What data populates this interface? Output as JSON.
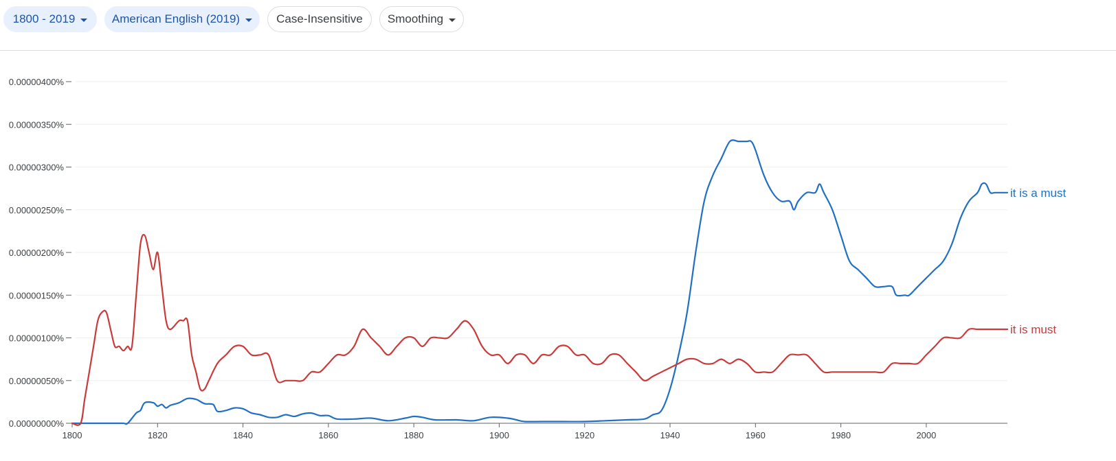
{
  "toolbar": {
    "year_range": "1800 - 2019",
    "corpus": "American English (2019)",
    "case": "Case-Insensitive",
    "smoothing": "Smoothing"
  },
  "colors": {
    "chip_bg": "#e8f0fe",
    "chip_text": "#1a55a8",
    "series_blue": "#1f6fc5",
    "series_red": "#c93a3a",
    "grid": "#eeeeee"
  },
  "chart_data": {
    "type": "line",
    "title": "",
    "xlabel": "",
    "ylabel": "",
    "xlim": [
      1800,
      2019
    ],
    "ylim": [
      0,
      4e-06
    ],
    "grid": true,
    "legend": "inline-right",
    "x_ticks": [
      "1800",
      "1820",
      "1840",
      "1860",
      "1880",
      "1900",
      "1920",
      "1940",
      "1960",
      "1980",
      "2000"
    ],
    "y_ticks": [
      "0.00000000%",
      "0.00000050%",
      "0.00000100%",
      "0.00000150%",
      "0.00000200%",
      "0.00000250%",
      "0.00000300%",
      "0.00000350%",
      "0.00000400%"
    ],
    "series": [
      {
        "name": "it is a must",
        "color": "#1f6fc5",
        "x": [
          1800,
          1805,
          1810,
          1812,
          1813,
          1815,
          1816,
          1817,
          1819,
          1820,
          1821,
          1822,
          1823,
          1825,
          1827,
          1829,
          1831,
          1833,
          1834,
          1836,
          1838,
          1840,
          1842,
          1844,
          1846,
          1848,
          1850,
          1852,
          1854,
          1856,
          1858,
          1860,
          1862,
          1866,
          1870,
          1874,
          1878,
          1880,
          1882,
          1885,
          1890,
          1894,
          1898,
          1902,
          1904,
          1906,
          1910,
          1915,
          1920,
          1925,
          1930,
          1934,
          1936,
          1938,
          1940,
          1942,
          1944,
          1946,
          1948,
          1950,
          1952,
          1954,
          1956,
          1957,
          1958,
          1959,
          1960,
          1962,
          1964,
          1966,
          1968,
          1969,
          1970,
          1972,
          1974,
          1975,
          1976,
          1978,
          1980,
          1982,
          1984,
          1986,
          1988,
          1990,
          1992,
          1993,
          1995,
          1996,
          1998,
          2000,
          2002,
          2004,
          2006,
          2008,
          2010,
          2012,
          2013,
          2014,
          2015,
          2016,
          2017,
          2018,
          2019
        ],
        "values": [
          0,
          0,
          0,
          0,
          0,
          1.2e-07,
          1.5e-07,
          2.4e-07,
          2.4e-07,
          2e-07,
          2.2e-07,
          1.8e-07,
          2.1e-07,
          2.4e-07,
          2.9e-07,
          2.8e-07,
          2.3e-07,
          2.2e-07,
          1.4e-07,
          1.5e-07,
          1.8e-07,
          1.7e-07,
          1.2e-07,
          1e-07,
          7e-08,
          7e-08,
          1e-07,
          8e-08,
          1.1e-07,
          1.2e-07,
          9e-08,
          9e-08,
          5e-08,
          5e-08,
          6e-08,
          3e-08,
          6e-08,
          8e-08,
          7e-08,
          4e-08,
          4e-08,
          3e-08,
          7e-08,
          6e-08,
          4e-08,
          2e-08,
          2e-08,
          2e-08,
          2e-08,
          3e-08,
          4e-08,
          5e-08,
          1e-07,
          1.5e-07,
          4e-07,
          8e-07,
          1.3e-06,
          2e-06,
          2.6e-06,
          2.9e-06,
          3.1e-06,
          3.3e-06,
          3.3e-06,
          3.3e-06,
          3.3e-06,
          3.3e-06,
          3.2e-06,
          2.9e-06,
          2.7e-06,
          2.6e-06,
          2.6e-06,
          2.5e-06,
          2.6e-06,
          2.7e-06,
          2.7e-06,
          2.8e-06,
          2.7e-06,
          2.5e-06,
          2.2e-06,
          1.9e-06,
          1.8e-06,
          1.7e-06,
          1.6e-06,
          1.6e-06,
          1.6e-06,
          1.5e-06,
          1.5e-06,
          1.5e-06,
          1.6e-06,
          1.7e-06,
          1.8e-06,
          1.9e-06,
          2.1e-06,
          2.4e-06,
          2.6e-06,
          2.7e-06,
          2.8e-06,
          2.8e-06,
          2.7e-06,
          2.7e-06,
          2.7e-06,
          2.7e-06,
          2.7e-06
        ]
      },
      {
        "name": "it is must",
        "color": "#c93a3a",
        "x": [
          1800,
          1802,
          1803,
          1805,
          1806,
          1807,
          1808,
          1809,
          1810,
          1811,
          1812,
          1813,
          1814,
          1815,
          1816,
          1817,
          1818,
          1819,
          1820,
          1821,
          1822,
          1823,
          1825,
          1826,
          1827,
          1828,
          1829,
          1830,
          1831,
          1832,
          1834,
          1836,
          1838,
          1840,
          1842,
          1844,
          1846,
          1848,
          1850,
          1852,
          1854,
          1856,
          1858,
          1860,
          1862,
          1864,
          1866,
          1868,
          1870,
          1872,
          1874,
          1876,
          1878,
          1880,
          1882,
          1884,
          1886,
          1888,
          1890,
          1892,
          1894,
          1896,
          1898,
          1900,
          1902,
          1904,
          1906,
          1908,
          1910,
          1912,
          1914,
          1916,
          1918,
          1920,
          1922,
          1924,
          1926,
          1928,
          1930,
          1932,
          1934,
          1936,
          1938,
          1940,
          1942,
          1944,
          1946,
          1948,
          1950,
          1952,
          1954,
          1956,
          1958,
          1960,
          1962,
          1964,
          1966,
          1968,
          1970,
          1972,
          1974,
          1976,
          1978,
          1980,
          1982,
          1984,
          1986,
          1988,
          1990,
          1992,
          1994,
          1996,
          1998,
          2000,
          2002,
          2004,
          2006,
          2008,
          2010,
          2012,
          2014,
          2016,
          2018,
          2019
        ],
        "values": [
          0,
          0,
          3e-07,
          9e-07,
          1.2e-06,
          1.3e-06,
          1.3e-06,
          1.1e-06,
          9e-07,
          9e-07,
          8.5e-07,
          9e-07,
          9e-07,
          1.5e-06,
          2.1e-06,
          2.2e-06,
          2e-06,
          1.8e-06,
          2e-06,
          1.6e-06,
          1.2e-06,
          1.1e-06,
          1.2e-06,
          1.2e-06,
          1.2e-06,
          8e-07,
          6e-07,
          4e-07,
          4e-07,
          5e-07,
          7e-07,
          8e-07,
          9e-07,
          9e-07,
          8e-07,
          8e-07,
          8e-07,
          5e-07,
          5e-07,
          5e-07,
          5e-07,
          6e-07,
          6e-07,
          7e-07,
          8e-07,
          8e-07,
          9e-07,
          1.1e-06,
          1e-06,
          9e-07,
          8e-07,
          9e-07,
          1e-06,
          1e-06,
          9e-07,
          1e-06,
          1e-06,
          1e-06,
          1.1e-06,
          1.2e-06,
          1.1e-06,
          9e-07,
          8e-07,
          8e-07,
          7e-07,
          8e-07,
          8e-07,
          7e-07,
          8e-07,
          8e-07,
          9e-07,
          9e-07,
          8e-07,
          8e-07,
          7e-07,
          7e-07,
          8e-07,
          8e-07,
          7e-07,
          6e-07,
          5e-07,
          5.5e-07,
          6e-07,
          6.5e-07,
          7e-07,
          7.5e-07,
          7.5e-07,
          7e-07,
          7e-07,
          7.5e-07,
          7e-07,
          7.5e-07,
          7e-07,
          6e-07,
          6e-07,
          6e-07,
          7e-07,
          8e-07,
          8e-07,
          8e-07,
          7e-07,
          6e-07,
          6e-07,
          6e-07,
          6e-07,
          6e-07,
          6e-07,
          6e-07,
          6e-07,
          7e-07,
          7e-07,
          7e-07,
          7e-07,
          8e-07,
          9e-07,
          1e-06,
          1e-06,
          1e-06,
          1.1e-06,
          1.1e-06,
          1.1e-06,
          1.1e-06,
          1.1e-06,
          1.1e-06
        ]
      }
    ]
  }
}
